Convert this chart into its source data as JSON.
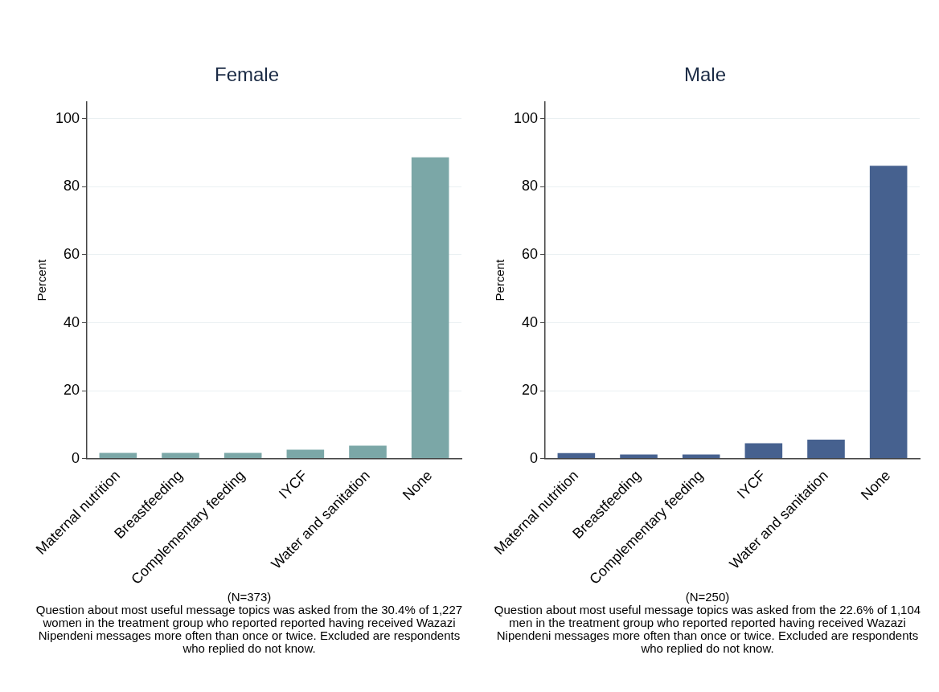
{
  "chart_data": [
    {
      "type": "bar",
      "title": "Female",
      "ylabel": "Percent",
      "categories": [
        "Maternal nutrition",
        "Breastfeeding",
        "Complementary feeding",
        "IYCF",
        "Water and sanitation",
        "None"
      ],
      "values": [
        1.7,
        1.7,
        1.7,
        2.6,
        3.8,
        88.7
      ],
      "color": "#7ba7a7",
      "ylim": [
        0,
        105
      ],
      "yticks": [
        0,
        20,
        40,
        60,
        80,
        100
      ],
      "grid": "y",
      "annotations": [
        "(N=373)",
        "Question about most useful message topics was asked from the 30.4% of 1,227 women in the treatment group who reported reported having received Wazazi Nipendeni messages more often than once or twice. Excluded are respondents who replied do not know."
      ]
    },
    {
      "type": "bar",
      "title": "Male",
      "ylabel": "Percent",
      "categories": [
        "Maternal nutrition",
        "Breastfeeding",
        "Complementary feeding",
        "IYCF",
        "Water and sanitation",
        "None"
      ],
      "values": [
        1.6,
        1.2,
        1.2,
        4.5,
        5.6,
        86.2
      ],
      "color": "#46618f",
      "ylim": [
        0,
        105
      ],
      "yticks": [
        0,
        20,
        40,
        60,
        80,
        100
      ],
      "grid": "y",
      "annotations": [
        "(N=250)",
        "Question about most useful message topics was asked from the 22.6% of 1,104 men in the treatment group who reported reported having received Wazazi Nipendeni messages more often than once or twice. Excluded are respondents who replied do not know."
      ]
    }
  ]
}
